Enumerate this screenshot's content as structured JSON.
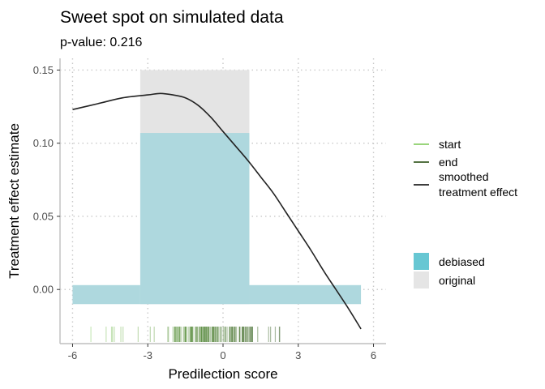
{
  "chart_data": {
    "type": "area",
    "title": "Sweet spot on simulated data",
    "subtitle": "p-value: 0.216",
    "xlabel": "Predilection score",
    "ylabel": "Treatment effect estimate",
    "xlim": [
      -6.5,
      6.5
    ],
    "ylim": [
      -0.037,
      0.158
    ],
    "x_ticks": [
      -6,
      -3,
      0,
      3,
      6
    ],
    "x_tick_labels": [
      "-6",
      "-3",
      "0",
      "3",
      "6"
    ],
    "y_ticks": [
      0.0,
      0.05,
      0.1,
      0.15
    ],
    "y_tick_labels": [
      "0.00",
      "0.05",
      "0.10",
      "0.15"
    ],
    "grid": "dotted",
    "legend_position": "right",
    "original_regions": [
      {
        "x_start": -3.3,
        "x_end": 1.05,
        "y_low": -0.01,
        "y_high": 0.15
      }
    ],
    "debiased_regions": [
      {
        "x_start": -6.0,
        "x_end": -3.3,
        "y_low": -0.01,
        "y_high": 0.003
      },
      {
        "x_start": -3.3,
        "x_end": 1.05,
        "y_low": -0.01,
        "y_high": 0.107
      },
      {
        "x_start": 1.05,
        "x_end": 5.5,
        "y_low": -0.01,
        "y_high": 0.003
      }
    ],
    "smoothed_effect": {
      "x": [
        -6.0,
        -5.0,
        -4.0,
        -3.0,
        -2.5,
        -2.0,
        -1.5,
        -1.0,
        -0.5,
        0.0,
        0.5,
        1.0,
        1.5,
        2.0,
        2.5,
        3.0,
        3.5,
        4.0,
        4.5,
        5.0,
        5.5
      ],
      "y": [
        0.123,
        0.127,
        0.131,
        0.133,
        0.134,
        0.133,
        0.131,
        0.126,
        0.118,
        0.108,
        0.098,
        0.088,
        0.077,
        0.066,
        0.053,
        0.04,
        0.027,
        0.013,
        0.0,
        -0.013,
        -0.027
      ]
    },
    "rug": {
      "x_min": -5.5,
      "x_max": 2.5,
      "concentration_range": [
        -2.0,
        1.2
      ]
    },
    "legend": {
      "lines": [
        {
          "label": "start",
          "color": "#8ccf6a"
        },
        {
          "label": "end",
          "color": "#3b5e27"
        },
        {
          "label_lines": [
            "smoothed",
            "treatment effect"
          ],
          "color": "#222222"
        }
      ],
      "fills": [
        {
          "label": "debiased",
          "color": "#67c7d3"
        },
        {
          "label": "original",
          "color": "#e5e5e5"
        }
      ]
    },
    "colors": {
      "original_fill": "#e4e4e4",
      "debiased_fill": "#aed8de",
      "smoothed_line": "#222222",
      "rug_start": "#8ccf6a",
      "rug_end": "#3b5e27",
      "grid": "#c8c8c8",
      "axis": "#bfbfbf"
    }
  }
}
